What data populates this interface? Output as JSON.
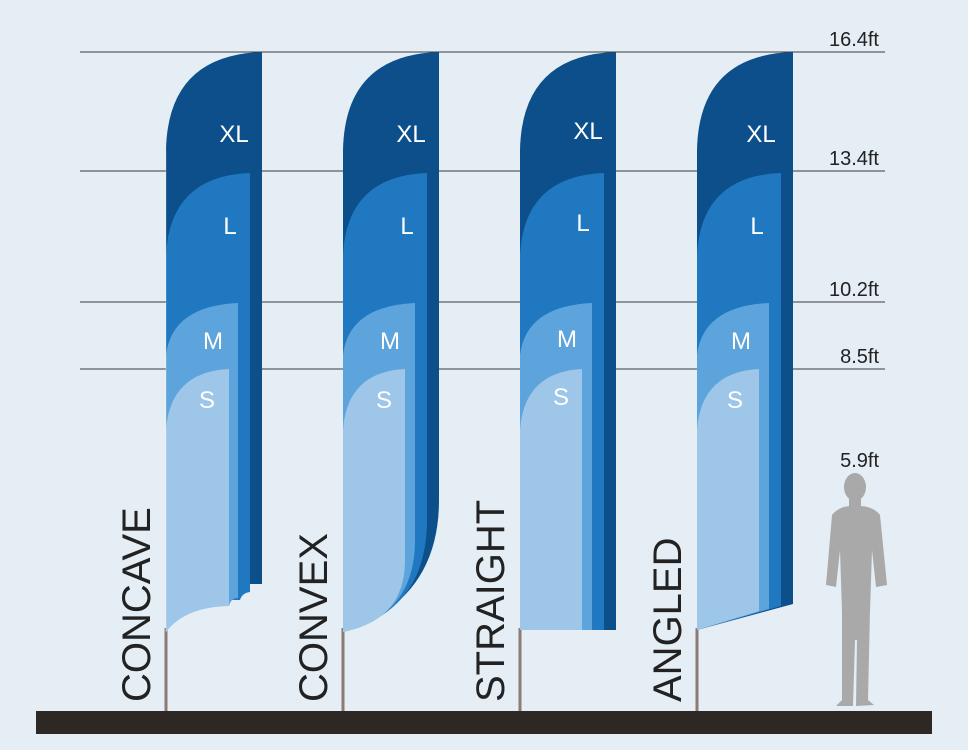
{
  "heights": [
    {
      "label": "16.4ft"
    },
    {
      "label": "13.4ft"
    },
    {
      "label": "10.2ft"
    },
    {
      "label": "8.5ft"
    },
    {
      "label": "5.9ft"
    }
  ],
  "size_labels": {
    "xl": "XL",
    "l": "L",
    "m": "M",
    "s": "S"
  },
  "shapes": [
    {
      "name": "CONCAVE"
    },
    {
      "name": "CONVEX"
    },
    {
      "name": "STRAIGHT"
    },
    {
      "name": "ANGLED"
    }
  ],
  "colors": {
    "background": "#e5eef5",
    "xl": "#0c4f8a",
    "l": "#1f78c0",
    "m": "#5ea4dc",
    "s": "#9ec6e9",
    "pole": "#8a7b74",
    "ground": "#2e2825",
    "person": "#a9a9a9",
    "lines": "#3a3a3a"
  }
}
